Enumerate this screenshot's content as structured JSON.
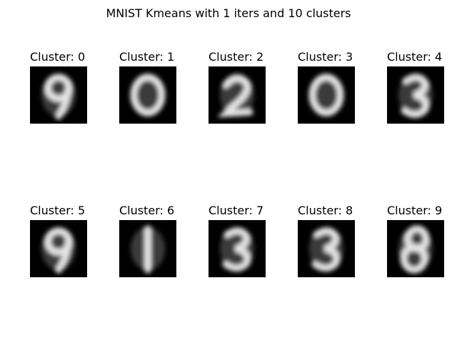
{
  "figure": {
    "title": "MNIST Kmeans with 1 iters and 10 clusters",
    "background": "#ffffff"
  },
  "chart_data": {
    "type": "image-grid",
    "title": "MNIST Kmeans with 1 iters and 10 clusters",
    "rows": 2,
    "cols": 5,
    "colormap": "gray",
    "image_shape": [
      28,
      28
    ],
    "axes_visible": false,
    "panels": [
      {
        "label": "Cluster: 0",
        "digit": "9"
      },
      {
        "label": "Cluster: 1",
        "digit": "0"
      },
      {
        "label": "Cluster: 2",
        "digit": "2"
      },
      {
        "label": "Cluster: 3",
        "digit": "0"
      },
      {
        "label": "Cluster: 4",
        "digit": "3"
      },
      {
        "label": "Cluster: 5",
        "digit": "9"
      },
      {
        "label": "Cluster: 6",
        "digit": "1"
      },
      {
        "label": "Cluster: 7",
        "digit": "3"
      },
      {
        "label": "Cluster: 8",
        "digit": "3"
      },
      {
        "label": "Cluster: 9",
        "digit": "8"
      }
    ]
  }
}
